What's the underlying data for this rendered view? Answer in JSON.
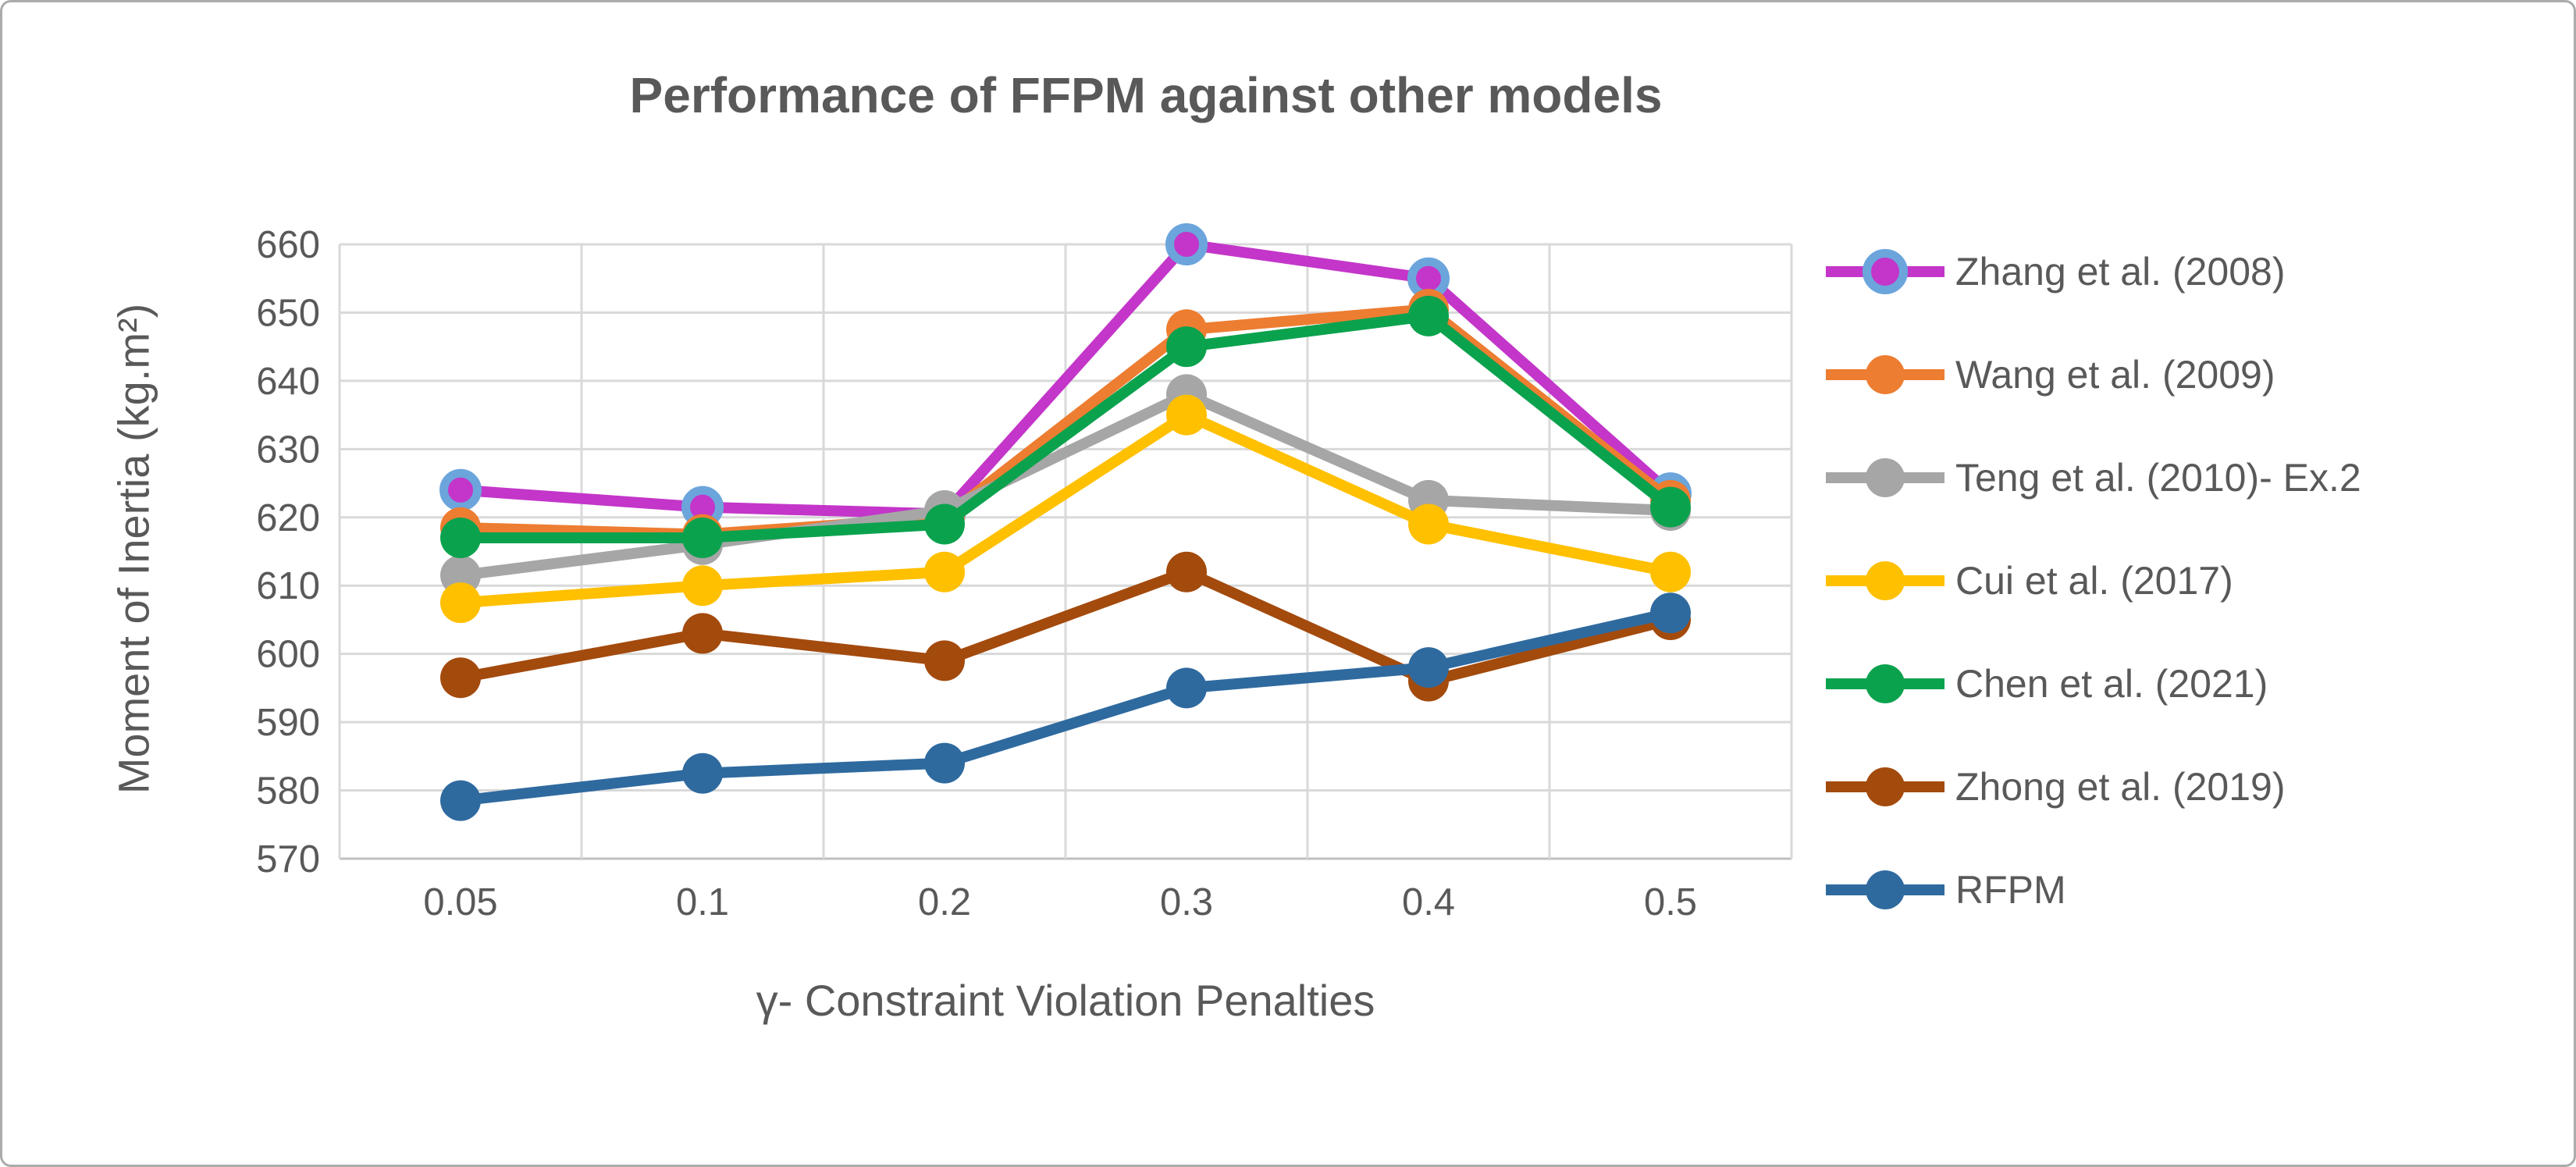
{
  "figure": {
    "title": "Performance of FFPM against other models"
  },
  "chart_data": {
    "type": "line",
    "title": "Performance of FFPM against other models",
    "xlabel": "γ- Constraint Violation Penalties",
    "ylabel": "Moment of Inertia (kg.m²)",
    "categories": [
      "0.05",
      "0.1",
      "0.2",
      "0.3",
      "0.4",
      "0.5"
    ],
    "yticks": [
      570,
      580,
      590,
      600,
      610,
      620,
      630,
      640,
      650,
      660
    ],
    "ylim": [
      570,
      660
    ],
    "grid": true,
    "legend_position": "right",
    "series": [
      {
        "name": "Zhang et al. (2008)",
        "color": "#C336C9",
        "marker_ring": "#6BA5DC",
        "values": [
          624,
          621.5,
          620.5,
          660,
          655,
          623.5
        ]
      },
      {
        "name": "Wang et al. (2009)",
        "color": "#ED7D31",
        "values": [
          618.5,
          617.5,
          620,
          647.5,
          650.5,
          622.5
        ]
      },
      {
        "name": "Teng et al. (2010)- Ex.2",
        "color": "#A6A6A6",
        "values": [
          611.5,
          616,
          621,
          638,
          622.5,
          621
        ]
      },
      {
        "name": "Cui et al. (2017)",
        "color": "#FFC000",
        "values": [
          607.5,
          610,
          612,
          635,
          619,
          612
        ]
      },
      {
        "name": "Chen et al. (2021)",
        "color": "#0BA24E",
        "values": [
          617,
          617,
          619,
          645,
          649.5,
          621.5
        ]
      },
      {
        "name": "Zhong et al. (2019)",
        "color": "#A34A0D",
        "values": [
          596.5,
          603,
          599,
          612,
          596,
          605
        ]
      },
      {
        "name": "RFPM",
        "color": "#2F6A9F",
        "values": [
          578.5,
          582.5,
          584,
          595,
          598,
          606
        ]
      }
    ],
    "style": {
      "text_color": "#595959",
      "gridline_color": "#D9D9D9",
      "axis_line_color": "#BFBFBF",
      "background": "#FFFFFF",
      "figure_border_color": "#ABABAB"
    }
  }
}
